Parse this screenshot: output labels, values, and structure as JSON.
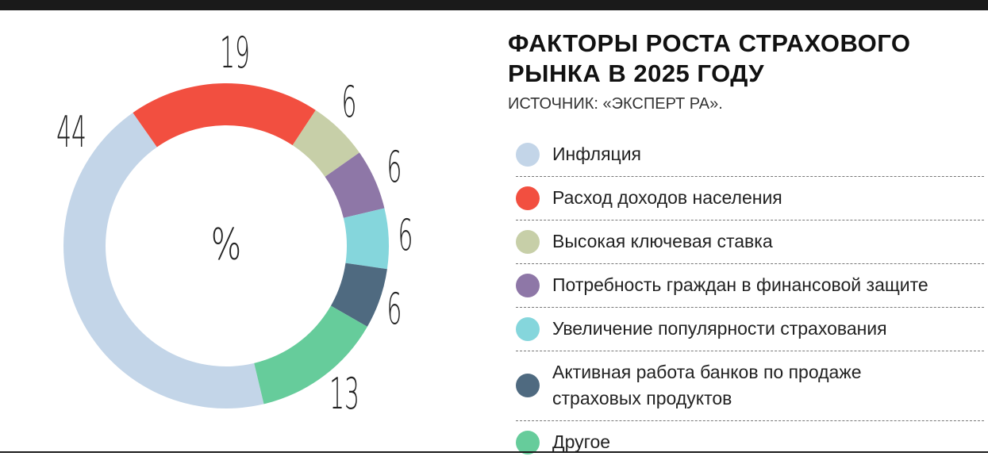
{
  "chart_data": {
    "type": "donut",
    "title": "ФАКТОРЫ РОСТА СТРАХОВОГО РЫНКА В 2025 ГОДУ",
    "subtitle": "ИСТОЧНИК: «ЭКСПЕРТ РА».",
    "center_label": "%",
    "categories": [
      "Инфляция",
      "Расход доходов населения",
      "Высокая ключевая ставка",
      "Потребность граждан в финансовой защите",
      "Увеличение популярности страхования",
      "Активная работа банков по продаже страховых продуктов",
      "Другое"
    ],
    "values": [
      44,
      19,
      6,
      6,
      6,
      6,
      13
    ],
    "colors": [
      "#c3d5e8",
      "#f24f40",
      "#c7cfa8",
      "#8e77a7",
      "#85d6dc",
      "#4f6a80",
      "#66cc9b"
    ]
  }
}
